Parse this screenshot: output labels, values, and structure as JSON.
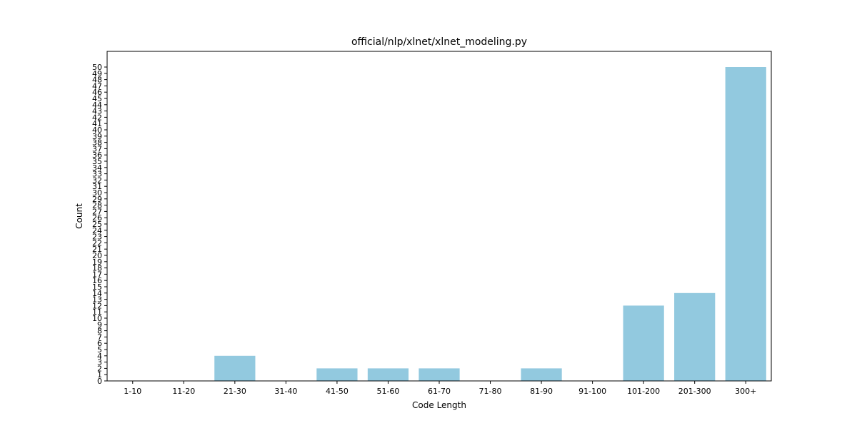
{
  "chart_data": {
    "type": "bar",
    "title": "official/nlp/xlnet/xlnet_modeling.py",
    "xlabel": "Code Length",
    "ylabel": "Count",
    "categories": [
      "1-10",
      "11-20",
      "21-30",
      "31-40",
      "41-50",
      "51-60",
      "61-70",
      "71-80",
      "81-90",
      "91-100",
      "101-200",
      "201-300",
      "300+"
    ],
    "values": [
      0,
      0,
      4,
      0,
      2,
      2,
      2,
      0,
      2,
      0,
      12,
      14,
      50
    ],
    "ylim": [
      0,
      52.5
    ],
    "yticks": [
      0,
      1,
      2,
      3,
      4,
      5,
      6,
      7,
      8,
      9,
      10,
      11,
      12,
      13,
      14,
      15,
      16,
      17,
      18,
      19,
      20,
      21,
      22,
      23,
      24,
      25,
      26,
      27,
      28,
      29,
      30,
      31,
      32,
      33,
      34,
      35,
      36,
      37,
      38,
      39,
      40,
      41,
      42,
      43,
      44,
      45,
      46,
      47,
      48,
      49,
      50
    ],
    "grid": false,
    "bar_color": "#92c9df"
  }
}
